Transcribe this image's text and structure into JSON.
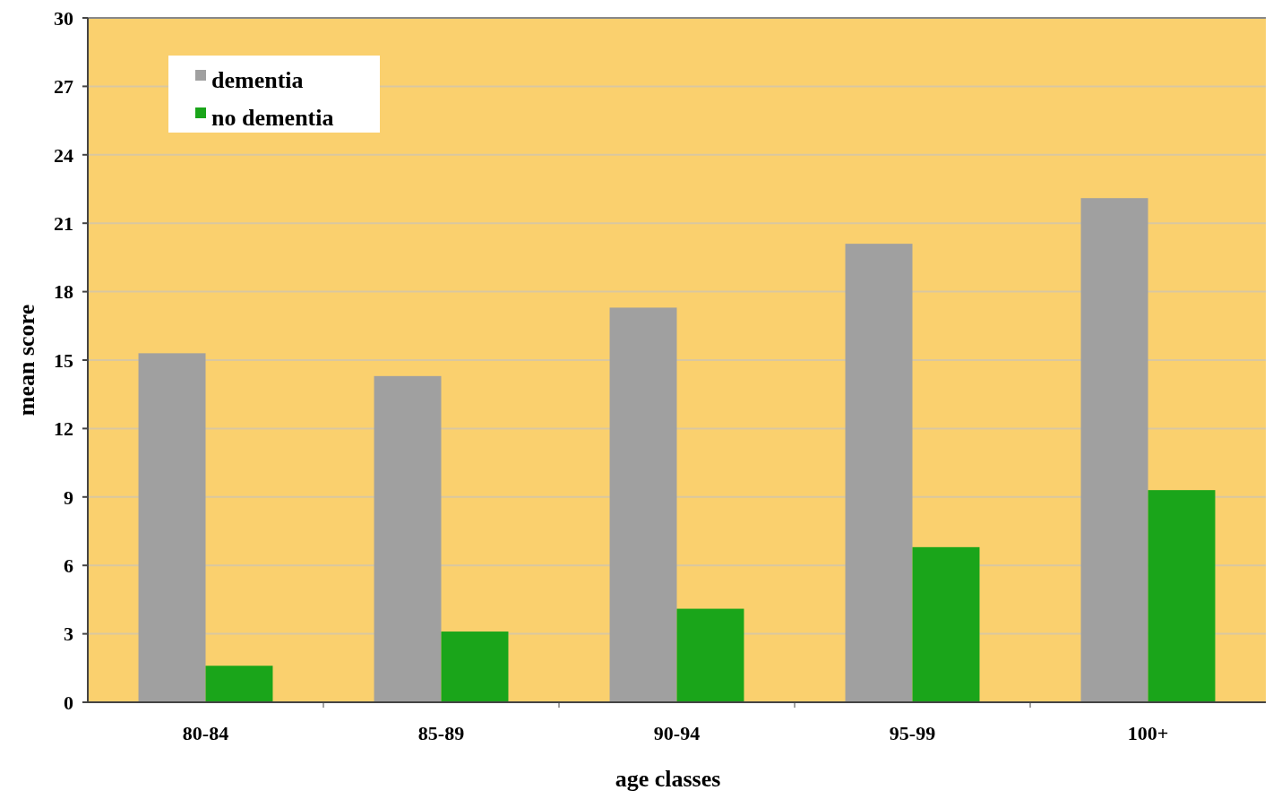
{
  "chart_data": {
    "type": "bar",
    "xlabel": "age classes",
    "ylabel": "mean score",
    "categories": [
      "80-84",
      "85-89",
      "90-94",
      "95-99",
      "100+"
    ],
    "series": [
      {
        "name": "dementia",
        "color": "#a0a0a0",
        "values": [
          15.3,
          14.3,
          17.3,
          20.1,
          22.1
        ]
      },
      {
        "name": "no dementia",
        "color": "#1aa51a",
        "values": [
          1.6,
          3.1,
          4.1,
          6.8,
          9.3
        ]
      }
    ],
    "ylim": [
      0,
      30
    ],
    "yticks": [
      0,
      3,
      6,
      9,
      12,
      15,
      18,
      21,
      24,
      27,
      30
    ],
    "grid": "y",
    "legend": "top left"
  }
}
